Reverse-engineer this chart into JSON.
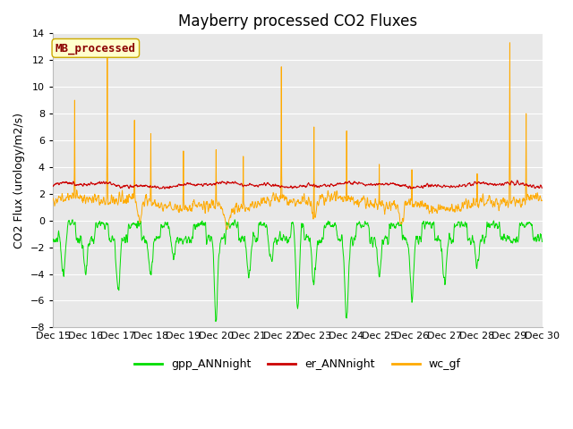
{
  "title": "Mayberry processed CO2 Fluxes",
  "ylabel": "CO2 Flux (urology/m2/s)",
  "ylim": [
    -8,
    14
  ],
  "yticks": [
    -8,
    -6,
    -4,
    -2,
    0,
    2,
    4,
    6,
    8,
    10,
    12,
    14
  ],
  "colors": {
    "gpp": "#00dd00",
    "er": "#cc0000",
    "wc": "#ffaa00"
  },
  "legend_labels": [
    "gpp_ANNnight",
    "er_ANNnight",
    "wc_gf"
  ],
  "annotation_text": "MB_processed",
  "annotation_color": "#8b0000",
  "annotation_bg": "#ffffcc",
  "annotation_edge": "#ccaa00",
  "fig_bg": "#ffffff",
  "plot_bg": "#e8e8e8",
  "grid_color": "#ffffff",
  "n_points": 1440,
  "title_fontsize": 12,
  "label_fontsize": 9,
  "tick_fontsize": 8,
  "annotation_fontsize": 9,
  "legend_fontsize": 9
}
